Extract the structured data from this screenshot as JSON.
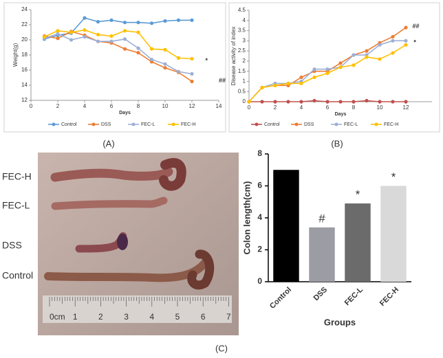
{
  "chart_data": [
    {
      "type": "line",
      "xlabel": "Days",
      "ylabel": "Weight(g)",
      "x": [
        1,
        2,
        3,
        4,
        5,
        6,
        7,
        8,
        9,
        10,
        11,
        12
      ],
      "xlim": [
        0,
        14
      ],
      "xticks": [
        0,
        2,
        4,
        6,
        8,
        10,
        12,
        14
      ],
      "ylim": [
        12,
        24
      ],
      "yticks": [
        12,
        14,
        16,
        18,
        20,
        22,
        24
      ],
      "series": [
        {
          "name": "Control",
          "color": "#5b9bd5",
          "values": [
            20.1,
            20.6,
            20.9,
            22.9,
            22.4,
            22.6,
            22.3,
            22.3,
            22.2,
            22.5,
            22.6,
            22.6
          ]
        },
        {
          "name": "DSS",
          "color": "#ed7d31",
          "values": [
            20.5,
            20.2,
            21.1,
            20.6,
            19.8,
            19.6,
            18.8,
            18.3,
            17.1,
            16.3,
            15.7,
            14.5
          ]
        },
        {
          "name": "FEC-L",
          "color": "#9dafd6",
          "values": [
            20.2,
            20.8,
            20.0,
            20.4,
            19.8,
            19.8,
            20.1,
            18.9,
            17.4,
            16.8,
            15.8,
            15.5
          ]
        },
        {
          "name": "FEC-H",
          "color": "#ffc000",
          "values": [
            20.4,
            21.2,
            21.0,
            21.3,
            20.7,
            20.5,
            21.2,
            21.0,
            18.8,
            18.7,
            17.6,
            17.5
          ]
        }
      ],
      "annotations": [
        "*",
        "##"
      ]
    },
    {
      "type": "line",
      "xlabel": "Days",
      "ylabel": "Disease activity of index",
      "x": [
        0,
        1,
        2,
        3,
        4,
        5,
        6,
        7,
        8,
        9,
        10,
        11,
        12
      ],
      "xlim": [
        0,
        14
      ],
      "xticks": [
        0,
        2,
        4,
        6,
        8,
        10,
        12
      ],
      "ylim": [
        0,
        4.5
      ],
      "yticks": [
        0,
        0.5,
        1,
        1.5,
        2,
        2.5,
        3,
        3.5,
        4,
        4.5
      ],
      "series": [
        {
          "name": "Control",
          "color": "#c0504d",
          "values": [
            0,
            0,
            0,
            0,
            0,
            0.05,
            0,
            0,
            0,
            0.05,
            0,
            0,
            0
          ]
        },
        {
          "name": "DSS",
          "color": "#ed7d31",
          "values": [
            0,
            0.7,
            0.8,
            0.8,
            1.2,
            1.5,
            1.5,
            1.9,
            2.3,
            2.5,
            2.9,
            3.2,
            3.65
          ]
        },
        {
          "name": "FEC-L",
          "color": "#9dafd6",
          "values": [
            0,
            0.7,
            0.9,
            0.9,
            1.0,
            1.6,
            1.6,
            1.7,
            2.3,
            2.3,
            2.8,
            3.0,
            3.0
          ]
        },
        {
          "name": "FEC-H",
          "color": "#ffc000",
          "values": [
            0,
            0.7,
            0.8,
            0.9,
            0.9,
            1.2,
            1.4,
            1.7,
            1.8,
            2.2,
            2.1,
            2.4,
            2.8
          ]
        }
      ],
      "annotations": [
        "##",
        "*"
      ]
    },
    {
      "type": "bar",
      "xlabel": "Groups",
      "ylabel": "Colon length(cm)",
      "categories": [
        "Control",
        "DSS",
        "FEC-L",
        "FEC-H"
      ],
      "values": [
        7.0,
        3.4,
        4.9,
        6.0
      ],
      "colors": [
        "#000000",
        "#9c9ca4",
        "#6b6b6b",
        "#d9d9d9"
      ],
      "ylim": [
        0,
        8
      ],
      "yticks": [
        0,
        2,
        4,
        6,
        8
      ],
      "annotations": [
        null,
        "#",
        "*",
        "*"
      ]
    }
  ],
  "panel_labels": [
    "(A)",
    "(B)",
    "(C)"
  ],
  "photo": {
    "labels": [
      "FEC-H",
      "FEC-L",
      "DSS",
      "Control"
    ],
    "ruler": [
      "0cm",
      "1",
      "2",
      "3",
      "4",
      "5",
      "6",
      "7"
    ]
  }
}
